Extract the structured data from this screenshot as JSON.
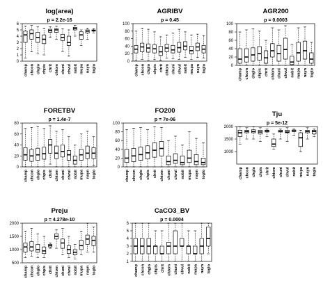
{
  "categories": [
    "champ",
    "chcon",
    "chglo",
    "chpis",
    "chrit",
    "chtom",
    "chuni",
    "chvul",
    "nobit",
    "mupa",
    "nayn",
    "toglo"
  ],
  "colors": {
    "box": "#ffffff",
    "stroke": "#000000",
    "median": "#000000"
  },
  "chart_data": [
    {
      "type": "boxplot",
      "title": "log(area)",
      "pvalue": "p = 2.2e-16",
      "ylim": [
        0,
        6
      ],
      "yticks": [
        0,
        1,
        2,
        3,
        4,
        5,
        6
      ],
      "boxes": [
        {
          "min": 0.5,
          "q1": 3.0,
          "median": 4.2,
          "q3": 4.8,
          "max": 5.6
        },
        {
          "min": 1.5,
          "q1": 3.5,
          "median": 4.4,
          "q3": 5.0,
          "max": 5.7
        },
        {
          "min": 1.2,
          "q1": 3.0,
          "median": 3.8,
          "q3": 4.6,
          "max": 5.5
        },
        {
          "min": 1.0,
          "q1": 2.8,
          "median": 3.5,
          "q3": 4.2,
          "max": 5.3
        },
        {
          "min": 3.8,
          "q1": 4.6,
          "median": 4.9,
          "q3": 5.1,
          "max": 5.5
        },
        {
          "min": 3.5,
          "q1": 4.6,
          "median": 5.0,
          "q3": 5.2,
          "max": 5.6
        },
        {
          "min": 1.5,
          "q1": 3.3,
          "median": 3.8,
          "q3": 4.3,
          "max": 5.2
        },
        {
          "min": 0.8,
          "q1": 2.5,
          "median": 3.0,
          "q3": 4.0,
          "max": 5.0
        },
        {
          "min": 4.0,
          "q1": 5.0,
          "median": 5.2,
          "q3": 5.4,
          "max": 5.7
        },
        {
          "min": 2.5,
          "q1": 3.5,
          "median": 4.2,
          "q3": 4.7,
          "max": 5.0
        },
        {
          "min": 3.5,
          "q1": 4.5,
          "median": 4.8,
          "q3": 5.0,
          "max": 5.3
        },
        {
          "min": 4.5,
          "q1": 4.8,
          "median": 4.9,
          "q3": 5.0,
          "max": 5.2
        }
      ]
    },
    {
      "type": "boxplot",
      "title": "AGRIBV",
      "pvalue": "p = 0.45",
      "ylim": [
        0,
        100
      ],
      "yticks": [
        0,
        20,
        40,
        60,
        80,
        100
      ],
      "boxes": [
        {
          "min": 2,
          "q1": 22,
          "median": 32,
          "q3": 42,
          "max": 80
        },
        {
          "min": 5,
          "q1": 25,
          "median": 38,
          "q3": 48,
          "max": 88
        },
        {
          "min": 3,
          "q1": 24,
          "median": 35,
          "q3": 46,
          "max": 85
        },
        {
          "min": 4,
          "q1": 22,
          "median": 33,
          "q3": 44,
          "max": 78
        },
        {
          "min": 2,
          "q1": 15,
          "median": 25,
          "q3": 40,
          "max": 65
        },
        {
          "min": 8,
          "q1": 25,
          "median": 35,
          "q3": 45,
          "max": 70
        },
        {
          "min": 6,
          "q1": 22,
          "median": 30,
          "q3": 42,
          "max": 75
        },
        {
          "min": 5,
          "q1": 24,
          "median": 36,
          "q3": 50,
          "max": 85
        },
        {
          "min": 10,
          "q1": 30,
          "median": 40,
          "q3": 52,
          "max": 78
        },
        {
          "min": 5,
          "q1": 20,
          "median": 28,
          "q3": 40,
          "max": 70
        },
        {
          "min": 10,
          "q1": 28,
          "median": 38,
          "q3": 48,
          "max": 72
        },
        {
          "min": 8,
          "q1": 22,
          "median": 32,
          "q3": 42,
          "max": 68
        }
      ]
    },
    {
      "type": "boxplot",
      "title": "AGR200",
      "pvalue": "p = 0.0003",
      "ylim": [
        0,
        100
      ],
      "yticks": [
        0,
        20,
        40,
        60,
        80,
        100
      ],
      "boxes": [
        {
          "min": 0,
          "q1": 5,
          "median": 15,
          "q3": 40,
          "max": 80
        },
        {
          "min": 0,
          "q1": 8,
          "median": 20,
          "q3": 40,
          "max": 85
        },
        {
          "min": 0,
          "q1": 10,
          "median": 25,
          "q3": 42,
          "max": 88
        },
        {
          "min": 0,
          "q1": 12,
          "median": 28,
          "q3": 45,
          "max": 82
        },
        {
          "min": 0,
          "q1": 5,
          "median": 18,
          "q3": 35,
          "max": 60
        },
        {
          "min": 0,
          "q1": 20,
          "median": 35,
          "q3": 52,
          "max": 90
        },
        {
          "min": 0,
          "q1": 10,
          "median": 28,
          "q3": 48,
          "max": 85
        },
        {
          "min": 0,
          "q1": 15,
          "median": 38,
          "q3": 65,
          "max": 95
        },
        {
          "min": 0,
          "q1": 2,
          "median": 8,
          "q3": 22,
          "max": 50
        },
        {
          "min": 0,
          "q1": 10,
          "median": 30,
          "q3": 55,
          "max": 90
        },
        {
          "min": 0,
          "q1": 15,
          "median": 35,
          "q3": 58,
          "max": 92
        },
        {
          "min": 0,
          "q1": 5,
          "median": 15,
          "q3": 30,
          "max": 55
        }
      ]
    },
    {
      "type": "boxplot",
      "title": "FORETBV",
      "pvalue": "p = 1.4e-7",
      "ylim": [
        0,
        80
      ],
      "yticks": [
        0,
        20,
        40,
        60,
        80
      ],
      "boxes": [
        {
          "min": 0,
          "q1": 12,
          "median": 22,
          "q3": 35,
          "max": 70
        },
        {
          "min": 0,
          "q1": 10,
          "median": 20,
          "q3": 32,
          "max": 72
        },
        {
          "min": 0,
          "q1": 12,
          "median": 22,
          "q3": 34,
          "max": 74
        },
        {
          "min": 0,
          "q1": 14,
          "median": 24,
          "q3": 36,
          "max": 70
        },
        {
          "min": 5,
          "q1": 25,
          "median": 40,
          "q3": 50,
          "max": 75
        },
        {
          "min": 0,
          "q1": 15,
          "median": 25,
          "q3": 38,
          "max": 65
        },
        {
          "min": 0,
          "q1": 18,
          "median": 28,
          "q3": 40,
          "max": 68
        },
        {
          "min": 0,
          "q1": 12,
          "median": 22,
          "q3": 30,
          "max": 55
        },
        {
          "min": 0,
          "q1": 5,
          "median": 12,
          "q3": 20,
          "max": 40
        },
        {
          "min": 0,
          "q1": 12,
          "median": 22,
          "q3": 32,
          "max": 60
        },
        {
          "min": 0,
          "q1": 15,
          "median": 25,
          "q3": 38,
          "max": 65
        },
        {
          "min": 2,
          "q1": 15,
          "median": 25,
          "q3": 35,
          "max": 55
        }
      ]
    },
    {
      "type": "boxplot",
      "title": "FO200",
      "pvalue": "p = 7e-06",
      "ylim": [
        0,
        100
      ],
      "yticks": [
        0,
        20,
        40,
        60,
        80,
        100
      ],
      "boxes": [
        {
          "min": 0,
          "q1": 10,
          "median": 20,
          "q3": 40,
          "max": 85
        },
        {
          "min": 0,
          "q1": 12,
          "median": 25,
          "q3": 42,
          "max": 88
        },
        {
          "min": 0,
          "q1": 15,
          "median": 28,
          "q3": 45,
          "max": 90
        },
        {
          "min": 0,
          "q1": 18,
          "median": 32,
          "q3": 48,
          "max": 85
        },
        {
          "min": 0,
          "q1": 22,
          "median": 38,
          "q3": 55,
          "max": 92
        },
        {
          "min": 0,
          "q1": 25,
          "median": 42,
          "q3": 58,
          "max": 90
        },
        {
          "min": 0,
          "q1": 5,
          "median": 12,
          "q3": 25,
          "max": 60
        },
        {
          "min": 0,
          "q1": 8,
          "median": 15,
          "q3": 30,
          "max": 70
        },
        {
          "min": 0,
          "q1": 5,
          "median": 10,
          "q3": 25,
          "max": 50
        },
        {
          "min": 0,
          "q1": 10,
          "median": 20,
          "q3": 38,
          "max": 80
        },
        {
          "min": 0,
          "q1": 5,
          "median": 12,
          "q3": 28,
          "max": 65
        },
        {
          "min": 0,
          "q1": 5,
          "median": 10,
          "q3": 20,
          "max": 55
        }
      ]
    },
    {
      "type": "boxplot",
      "title": "Tju",
      "pvalue": "p = 5e-12",
      "ylim": [
        500,
        2000
      ],
      "yticks": [
        1000,
        1500,
        2000
      ],
      "boxes": [
        {
          "min": 1300,
          "q1": 1600,
          "median": 1750,
          "q3": 1850,
          "max": 2000
        },
        {
          "min": 1500,
          "q1": 1750,
          "median": 1800,
          "q3": 1850,
          "max": 1950
        },
        {
          "min": 1500,
          "q1": 1750,
          "median": 1800,
          "q3": 1870,
          "max": 2000
        },
        {
          "min": 1400,
          "q1": 1700,
          "median": 1780,
          "q3": 1850,
          "max": 1950
        },
        {
          "min": 1600,
          "q1": 1780,
          "median": 1820,
          "q3": 1850,
          "max": 1900
        },
        {
          "min": 1100,
          "q1": 1200,
          "median": 1300,
          "q3": 1500,
          "max": 1700
        },
        {
          "min": 1500,
          "q1": 1780,
          "median": 1800,
          "q3": 1850,
          "max": 1900
        },
        {
          "min": 1400,
          "q1": 1750,
          "median": 1780,
          "q3": 1850,
          "max": 1950
        },
        {
          "min": 1650,
          "q1": 1800,
          "median": 1820,
          "q3": 1860,
          "max": 1900
        },
        {
          "min": 1000,
          "q1": 1200,
          "median": 1550,
          "q3": 1750,
          "max": 1850
        },
        {
          "min": 1500,
          "q1": 1750,
          "median": 1800,
          "q3": 1850,
          "max": 1950
        },
        {
          "min": 1600,
          "q1": 1700,
          "median": 1800,
          "q3": 1850,
          "max": 1900
        }
      ]
    },
    {
      "type": "boxplot",
      "title": "Preju",
      "pvalue": "p = 4.278e-10",
      "ylim": [
        500,
        2000
      ],
      "yticks": [
        500,
        1000,
        1500,
        2000
      ],
      "boxes": [
        {
          "min": 700,
          "q1": 900,
          "median": 1100,
          "q3": 1250,
          "max": 1700
        },
        {
          "min": 750,
          "q1": 950,
          "median": 1100,
          "q3": 1300,
          "max": 1800
        },
        {
          "min": 700,
          "q1": 900,
          "median": 1000,
          "q3": 1200,
          "max": 1600
        },
        {
          "min": 700,
          "q1": 850,
          "median": 950,
          "q3": 1100,
          "max": 1500
        },
        {
          "min": 1050,
          "q1": 1100,
          "median": 1150,
          "q3": 1200,
          "max": 1250
        },
        {
          "min": 1050,
          "q1": 1400,
          "median": 1500,
          "q3": 1600,
          "max": 1750
        },
        {
          "min": 800,
          "q1": 1050,
          "median": 1250,
          "q3": 1400,
          "max": 1800
        },
        {
          "min": 700,
          "q1": 850,
          "median": 1000,
          "q3": 1150,
          "max": 1500
        },
        {
          "min": 650,
          "q1": 800,
          "median": 900,
          "q3": 1000,
          "max": 1200
        },
        {
          "min": 800,
          "q1": 1000,
          "median": 1150,
          "q3": 1350,
          "max": 1700
        },
        {
          "min": 900,
          "q1": 1200,
          "median": 1400,
          "q3": 1550,
          "max": 2000
        },
        {
          "min": 900,
          "q1": 1150,
          "median": 1350,
          "q3": 1500,
          "max": 1850
        }
      ]
    },
    {
      "type": "boxplot",
      "title": "CaCO3_BV",
      "pvalue": "p = 0.0004",
      "ylim": [
        1,
        6
      ],
      "yticks": [
        1,
        2,
        3,
        4,
        5,
        6
      ],
      "boxes": [
        {
          "min": 1,
          "q1": 2,
          "median": 3,
          "q3": 4,
          "max": 6
        },
        {
          "min": 1,
          "q1": 2,
          "median": 3,
          "q3": 4,
          "max": 6
        },
        {
          "min": 1,
          "q1": 2,
          "median": 3,
          "q3": 4,
          "max": 6
        },
        {
          "min": 1,
          "q1": 2,
          "median": 3,
          "q3": 3,
          "max": 5
        },
        {
          "min": 1,
          "q1": 2,
          "median": 2,
          "q3": 3,
          "max": 5
        },
        {
          "min": 1,
          "q1": 2,
          "median": 3,
          "q3": 3.5,
          "max": 6
        },
        {
          "min": 1,
          "q1": 2,
          "median": 3,
          "q3": 5,
          "max": 6
        },
        {
          "min": 1,
          "q1": 3,
          "median": 3,
          "q3": 4,
          "max": 6
        },
        {
          "min": 1,
          "q1": 2,
          "median": 3,
          "q3": 3,
          "max": 5
        },
        {
          "min": 1,
          "q1": 2,
          "median": 2,
          "q3": 3,
          "max": 5
        },
        {
          "min": 1,
          "q1": 2,
          "median": 3,
          "q3": 4,
          "max": 6
        },
        {
          "min": 2,
          "q1": 3,
          "median": 4,
          "q3": 5.5,
          "max": 6
        }
      ]
    }
  ]
}
